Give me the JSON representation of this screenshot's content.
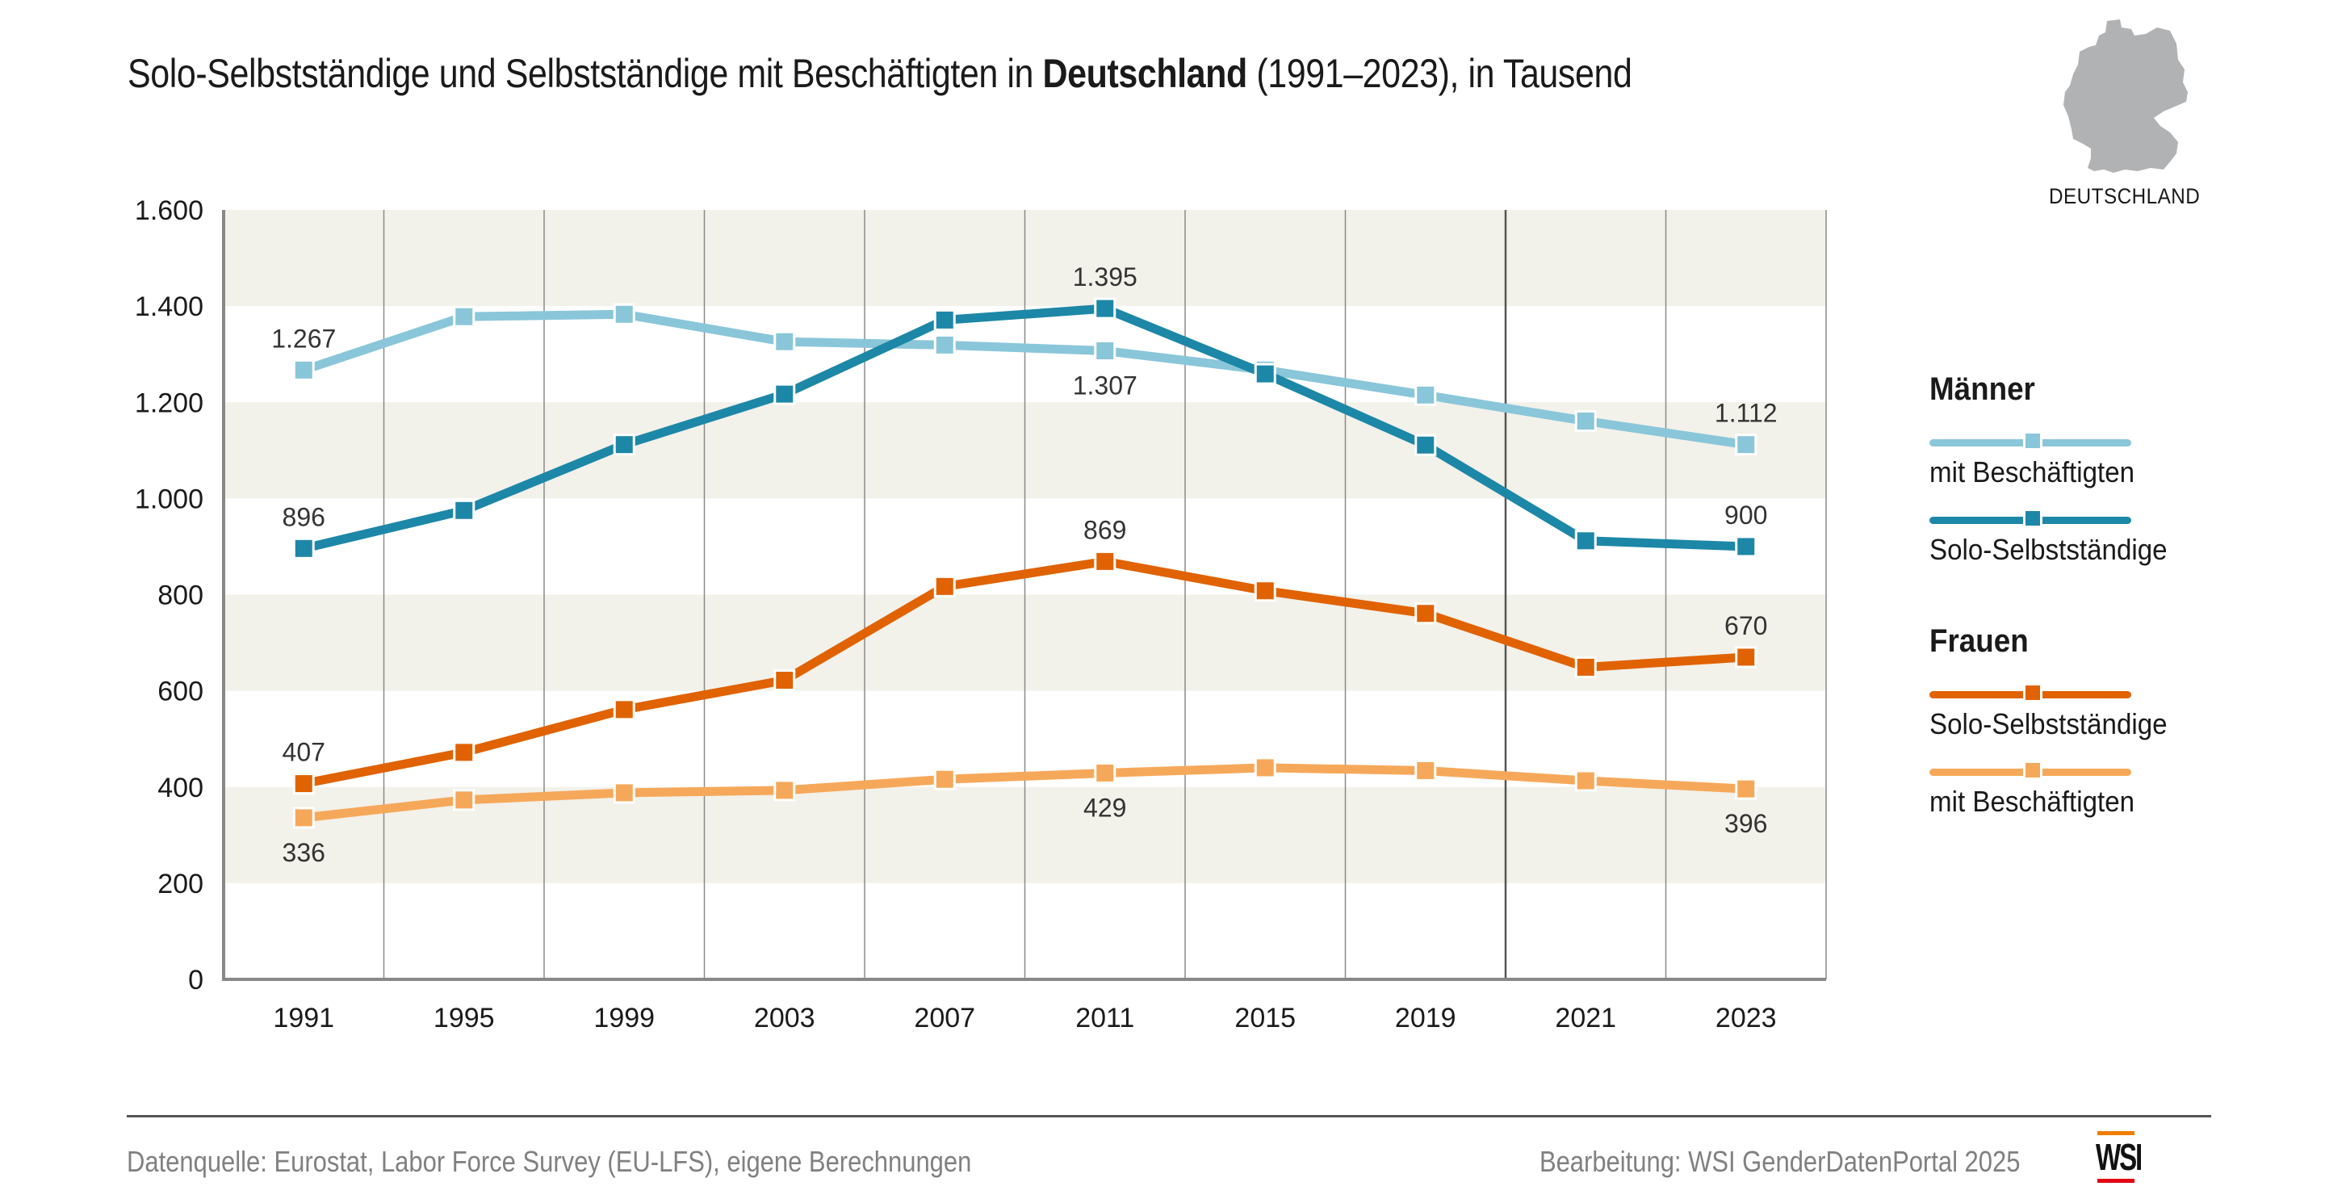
{
  "header": {
    "title_pre": "Solo-Selbstständige und Selbstständige mit Beschäftigten in ",
    "title_bold": "Deutschland",
    "title_post": " (1991–2023), in Tausend",
    "map_label": "DEUTSCHLAND",
    "map_icon": "germany-map-icon"
  },
  "legend": {
    "groups": [
      {
        "title": "Männer",
        "items": [
          {
            "label": "mit Beschäftigten",
            "color": "#8ac6d9"
          },
          {
            "label": "Solo-Selbstständige",
            "color": "#1d87a7"
          }
        ]
      },
      {
        "title": "Frauen",
        "items": [
          {
            "label": "Solo-Selbstständige",
            "color": "#e06200"
          },
          {
            "label": "mit Beschäftigten",
            "color": "#f6a85a"
          }
        ]
      }
    ]
  },
  "footer": {
    "source": "Datenquelle: Eurostat, Labor Force Survey (EU-LFS), eigene Berechnungen",
    "credit": "Bearbeitung: WSI GenderDatenPortal 2025",
    "logo_text": "WSI"
  },
  "chart_data": {
    "type": "line",
    "title": "Solo-Selbstständige und Selbstständige mit Beschäftigten in Deutschland (1991–2023), in Tausend",
    "xlabel": "",
    "ylabel": "",
    "x": [
      "1991",
      "1995",
      "1999",
      "2003",
      "2007",
      "2011",
      "2015",
      "2019",
      "2021",
      "2023"
    ],
    "ylim": [
      0,
      1600
    ],
    "yticks": [
      0,
      200,
      400,
      600,
      800,
      1000,
      1200,
      1400,
      1600
    ],
    "ytick_labels": [
      "0",
      "200",
      "400",
      "600",
      "800",
      "1.000",
      "1.200",
      "1.400",
      "1.600"
    ],
    "grid": "alternating horizontal bands, vertical lines between years",
    "band_color": "#f2f1ea",
    "legend_position": "right",
    "series": [
      {
        "name": "Männer – mit Beschäftigten",
        "color": "#8ac6d9",
        "values": [
          1267,
          1378,
          1383,
          1326,
          1319,
          1307,
          1267,
          1215,
          1161,
          1112
        ],
        "labels": [
          {
            "index": 0,
            "text": "1.267",
            "pos": "above"
          },
          {
            "index": 5,
            "text": "1.307",
            "pos": "below"
          },
          {
            "index": 9,
            "text": "1.112",
            "pos": "above"
          }
        ]
      },
      {
        "name": "Männer – Solo-Selbstständige",
        "color": "#1d87a7",
        "values": [
          896,
          975,
          1112,
          1217,
          1371,
          1395,
          1259,
          1111,
          912,
          900
        ],
        "labels": [
          {
            "index": 0,
            "text": "896",
            "pos": "above"
          },
          {
            "index": 5,
            "text": "1.395",
            "pos": "above"
          },
          {
            "index": 9,
            "text": "900",
            "pos": "above"
          }
        ]
      },
      {
        "name": "Frauen – Solo-Selbstständige",
        "color": "#e06200",
        "values": [
          407,
          472,
          561,
          622,
          817,
          869,
          808,
          761,
          649,
          670
        ],
        "labels": [
          {
            "index": 0,
            "text": "407",
            "pos": "above"
          },
          {
            "index": 5,
            "text": "869",
            "pos": "above"
          },
          {
            "index": 9,
            "text": "670",
            "pos": "above"
          }
        ]
      },
      {
        "name": "Frauen – mit Beschäftigten",
        "color": "#f6a85a",
        "values": [
          336,
          373,
          388,
          393,
          416,
          429,
          440,
          434,
          413,
          396
        ],
        "labels": [
          {
            "index": 0,
            "text": "336",
            "pos": "below"
          },
          {
            "index": 5,
            "text": "429",
            "pos": "below"
          },
          {
            "index": 9,
            "text": "396",
            "pos": "below"
          }
        ]
      }
    ]
  }
}
